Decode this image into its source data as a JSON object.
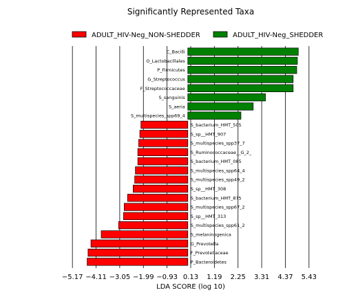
{
  "chart_data": {
    "type": "bar",
    "orientation": "horizontal",
    "title": "Significantly Represented Taxa",
    "xlabel": "LDA SCORE (log 10)",
    "ylabel": "",
    "xlim": [
      -5.7,
      5.96
    ],
    "xticks": [
      -5.17,
      -4.11,
      -3.05,
      -1.99,
      -0.93,
      0.13,
      1.19,
      2.25,
      3.31,
      4.37,
      5.43
    ],
    "xtick_labels": [
      "−5.17",
      "−4.11",
      "−3.05",
      "−1.99",
      "−0.93",
      "0.13",
      "1.19",
      "2.25",
      "3.31",
      "4.37",
      "5.43"
    ],
    "grid": "vertical lines at ticks",
    "legend_position": "top",
    "series": [
      {
        "name": "ADULT_HIV-Neg_NON-SHEDDER",
        "color": "#ff0000"
      },
      {
        "name": "ADULT_HIV-Neg_SHEDDER",
        "color": "#008000"
      }
    ],
    "bars": [
      {
        "label": "C_Bacilli",
        "value": 4.95,
        "group": "ADULT_HIV-Neg_SHEDDER"
      },
      {
        "label": "O_Lactobacillales",
        "value": 4.91,
        "group": "ADULT_HIV-Neg_SHEDDER"
      },
      {
        "label": "P_Firmicutes",
        "value": 4.88,
        "group": "ADULT_HIV-Neg_SHEDDER"
      },
      {
        "label": "G_Streptococcus",
        "value": 4.72,
        "group": "ADULT_HIV-Neg_SHEDDER"
      },
      {
        "label": "F_Streptococcaceae",
        "value": 4.72,
        "group": "ADULT_HIV-Neg_SHEDDER"
      },
      {
        "label": "S_sanguinis",
        "value": 3.48,
        "group": "ADULT_HIV-Neg_SHEDDER"
      },
      {
        "label": "S_aeria",
        "value": 2.93,
        "group": "ADULT_HIV-Neg_SHEDDER"
      },
      {
        "label": "S_multispecies_spp69_4",
        "value": 2.38,
        "group": "ADULT_HIV-Neg_SHEDDER"
      },
      {
        "label": "S_bacterium_HMT_505",
        "value": -2.1,
        "group": "ADULT_HIV-Neg_NON-SHEDDER"
      },
      {
        "label": "S_sp__HMT_907",
        "value": -2.15,
        "group": "ADULT_HIV-Neg_NON-SHEDDER"
      },
      {
        "label": "S_multispecies_spp37_7",
        "value": -2.2,
        "group": "ADULT_HIV-Neg_NON-SHEDDER"
      },
      {
        "label": "S_Ruminococcaceae__G_2_",
        "value": -2.24,
        "group": "ADULT_HIV-Neg_NON-SHEDDER"
      },
      {
        "label": "S_bacterium_HMT_085",
        "value": -2.24,
        "group": "ADULT_HIV-Neg_NON-SHEDDER"
      },
      {
        "label": "S_multispecies_spp64_4",
        "value": -2.35,
        "group": "ADULT_HIV-Neg_NON-SHEDDER"
      },
      {
        "label": "S_multispecies_spp49_2",
        "value": -2.38,
        "group": "ADULT_HIV-Neg_NON-SHEDDER"
      },
      {
        "label": "S_sp__HMT_308",
        "value": -2.45,
        "group": "ADULT_HIV-Neg_NON-SHEDDER"
      },
      {
        "label": "S_bacterium_HMT_875",
        "value": -2.7,
        "group": "ADULT_HIV-Neg_NON-SHEDDER"
      },
      {
        "label": "S_multispecies_spp67_2",
        "value": -2.85,
        "group": "ADULT_HIV-Neg_NON-SHEDDER"
      },
      {
        "label": "S_sp__HMT_313",
        "value": -2.88,
        "group": "ADULT_HIV-Neg_NON-SHEDDER"
      },
      {
        "label": "S_multispecies_spp61_2",
        "value": -3.1,
        "group": "ADULT_HIV-Neg_NON-SHEDDER"
      },
      {
        "label": "S_melaninogenica",
        "value": -3.88,
        "group": "ADULT_HIV-Neg_NON-SHEDDER"
      },
      {
        "label": "G_Prevotella",
        "value": -4.34,
        "group": "ADULT_HIV-Neg_NON-SHEDDER"
      },
      {
        "label": "F_Prevotellaceae",
        "value": -4.47,
        "group": "ADULT_HIV-Neg_NON-SHEDDER"
      },
      {
        "label": "P_Bacteroidetes",
        "value": -4.51,
        "group": "ADULT_HIV-Neg_NON-SHEDDER"
      }
    ]
  }
}
